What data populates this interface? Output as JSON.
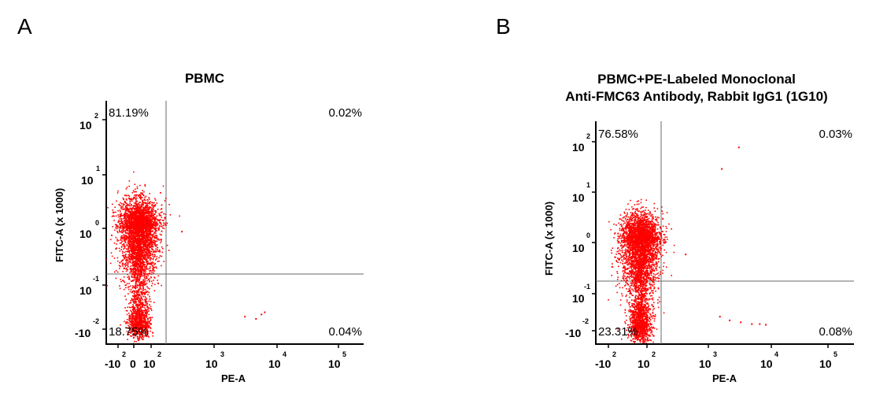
{
  "panels": {
    "a": {
      "letter": "A",
      "title_lines": [
        "PBMC"
      ]
    },
    "b": {
      "letter": "B",
      "title_lines": [
        "PBMC+PE-Labeled Monoclonal",
        "Anti-FMC63 Antibody, Rabbit IgG1 (1G10)"
      ]
    }
  },
  "chart_data": [
    {
      "type": "scatter",
      "title": "PBMC",
      "xlabel": "PE-A",
      "ylabel": "FITC-A (x 1000)",
      "x_scale": "biexponential",
      "y_scale": "biexponential",
      "x_ticks": [
        "-10 2",
        "0",
        "10 2",
        "10 3",
        "10 4",
        "10 5"
      ],
      "y_ticks": [
        "-10 -2",
        "10 -1",
        "10 0",
        "10 1",
        "10 2"
      ],
      "quadrants": {
        "upper_left": "81.19%",
        "upper_right": "0.02%",
        "lower_left": "18.75%",
        "lower_right": "0.04%"
      },
      "point_color": "#ff0000",
      "populations": [
        {
          "name": "",
          "x_center": 0,
          "y_center": 1.0,
          "count": 3500
        },
        {
          "name": "",
          "x_center": 0,
          "y_center": 0.02,
          "count": 900
        }
      ],
      "outliers": [
        [
          300,
          0.9
        ],
        [
          3000,
          0.03
        ],
        [
          4500,
          0.025
        ],
        [
          5500,
          0.035
        ],
        [
          6200,
          0.04
        ]
      ]
    },
    {
      "type": "scatter",
      "title": "PBMC+PE-Labeled Monoclonal Anti-FMC63 Antibody, Rabbit IgG1 (1G10)",
      "xlabel": "PE-A",
      "ylabel": "FITC-A (x 1000)",
      "x_scale": "biexponential",
      "y_scale": "biexponential",
      "x_ticks": [
        "-10 2",
        "10 2",
        "10 3",
        "10 4",
        "10 5"
      ],
      "y_ticks": [
        "-10 -2",
        "10 -1",
        "10 0",
        "10 1",
        "10 2"
      ],
      "quadrants": {
        "upper_left": "76.58%",
        "upper_right": "0.03%",
        "lower_left": "23.31%",
        "lower_right": "0.08%"
      },
      "point_color": "#ff0000",
      "populations": [
        {
          "name": "",
          "x_center": 40,
          "y_center": 1.0,
          "count": 3300
        },
        {
          "name": "",
          "x_center": 40,
          "y_center": 0.02,
          "count": 1000
        }
      ],
      "outliers": [
        [
          1500,
          30
        ],
        [
          2800,
          80
        ],
        [
          400,
          0.6
        ],
        [
          1400,
          0.04
        ],
        [
          2000,
          0.03
        ],
        [
          3000,
          0.025
        ],
        [
          4500,
          0.02
        ],
        [
          6000,
          0.02
        ],
        [
          7500,
          0.018
        ]
      ]
    }
  ]
}
